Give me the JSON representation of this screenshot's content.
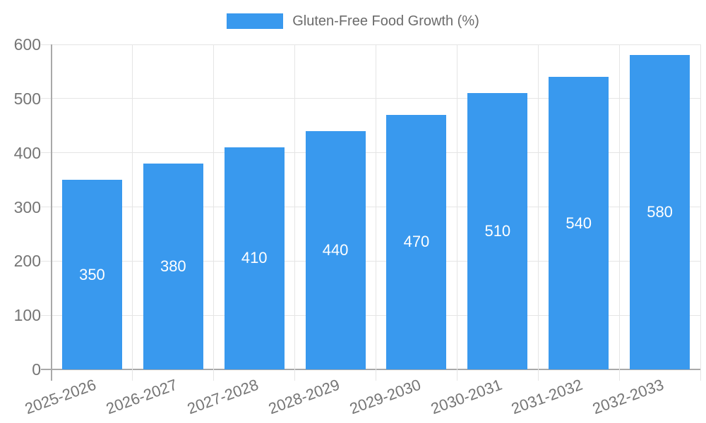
{
  "legend": {
    "label": "Gluten-Free Food Growth (%)"
  },
  "chart_data": {
    "type": "bar",
    "title": "",
    "xlabel": "",
    "ylabel": "",
    "categories": [
      "2025-2026",
      "2026-2027",
      "2027-2028",
      "2028-2029",
      "2029-2030",
      "2030-2031",
      "2031-2032",
      "2032-2033"
    ],
    "values": [
      350,
      380,
      410,
      440,
      470,
      510,
      540,
      580
    ],
    "series_name": "Gluten-Free Food Growth (%)",
    "value_labels": [
      "350",
      "380",
      "410",
      "440",
      "470",
      "510",
      "540",
      "580"
    ],
    "ylim": [
      0,
      600
    ],
    "yticks": [
      0,
      100,
      200,
      300,
      400,
      500,
      600
    ],
    "grid": true,
    "legend_position": "top",
    "x_label_rotation_deg": -20,
    "colors": {
      "bar": "#3999EE",
      "grid": "#E5E5E5",
      "axis": "#A9A9A9",
      "tick_text": "#757575",
      "value_text": "#FFFFFF",
      "legend_text": "#6B6B6B"
    }
  }
}
